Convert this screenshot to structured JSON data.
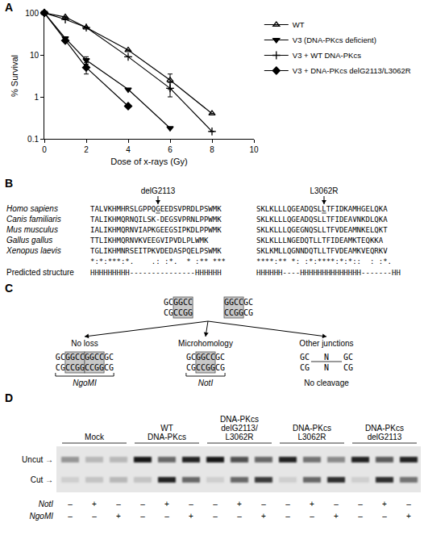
{
  "chart_data": {
    "panel": "A",
    "type": "line",
    "x_label": "Dose of x-rays (Gy)",
    "y_label": "% Survival",
    "x": [
      0,
      1,
      2,
      4,
      6,
      8
    ],
    "xlim": [
      0,
      10
    ],
    "xticks": [
      0,
      2,
      4,
      6,
      8,
      10
    ],
    "ylim": [
      0.1,
      100
    ],
    "yticks": [
      0.1,
      1,
      10,
      100
    ],
    "log": "y",
    "grid": false,
    "legend": "right",
    "series": [
      {
        "name": "WT",
        "color": "#000000",
        "marker": "triangle-up-open",
        "values": [
          100,
          80,
          45,
          13,
          2.5,
          0.4
        ],
        "error": [
          null,
          null,
          null,
          null,
          1,
          null
        ]
      },
      {
        "name": "V3 (DNA-PKcs deficient)",
        "color": "#000000",
        "marker": "triangle-down",
        "values": [
          100,
          25,
          7.5,
          1.5,
          0.18,
          null
        ],
        "error": [
          null,
          null,
          1.5,
          null,
          null,
          null
        ]
      },
      {
        "name": "V3 + WT DNA-PKcs",
        "color": "#000000",
        "marker": "cross-thin-open",
        "values": [
          100,
          70,
          45,
          9,
          1.6,
          0.15
        ],
        "error": [
          null,
          null,
          null,
          null,
          0.6,
          null
        ]
      },
      {
        "name": "V3 + DNA-PKcs delG2113/L3062R",
        "color": "#000000",
        "marker": "diamond",
        "values": [
          100,
          22,
          5,
          0.6,
          null,
          null
        ],
        "error": [
          null,
          null,
          1.5,
          null,
          null,
          null
        ]
      }
    ]
  },
  "alignment": {
    "panel": "B",
    "mutations": [
      "delG2113",
      "L3062R"
    ],
    "rows": [
      {
        "species": "Homo sapiens",
        "blocks": [
          [
            "TALVKHMHRSLGPPQ",
            "G",
            "EEDSVPRDLPSWMK"
          ],
          [
            "SKLKLLLQGEADQSL",
            "L",
            "TFIDKAMHGELQKA"
          ]
        ]
      },
      {
        "species": "Canis familiaris",
        "blocks": [
          [
            "TALIKHMQRNQILSK-DEGSVPRNLPPWMK"
          ],
          [
            "SKLKLLLQGEADQSLLTFIDEAVNKDLQKA"
          ]
        ]
      },
      {
        "species": "Mus musculus",
        "blocks": [
          [
            "IALIKHMQRNVIAPKGEEGSIPKDLPPWMK"
          ],
          [
            "SKLKLLLQGEGNQSLLTFVDEAMNKELQKT"
          ]
        ]
      },
      {
        "species": "Gallus gallus",
        "blocks": [
          [
            "TTLIKHMQRNVKVEEGVIPVDLPLWMK"
          ],
          [
            "SKLKLLLNGEDQTLLTFIDEAMKTEQKKA"
          ]
        ]
      },
      {
        "species": "Xenopus laevis",
        "blocks": [
          [
            "TGLIKHMNRSEITPKVDEDASPQELPSWMK"
          ],
          [
            "SKLKMLLQGNNDQTLLTFVDEAMKVEQRKV"
          ]
        ]
      }
    ],
    "consensus": [
      "*:*:***:*.    .: :*.  * :** ***",
      "****:** *: :*:****:*:*::  : :*."
    ],
    "structure_label": "Predicted structure",
    "structure": [
      "HHHHHHHHH---------------HHHHHH",
      "HHHHHH----HHHHHHHHHHHHHH-------HH"
    ]
  },
  "diagram": {
    "panel": "C",
    "ends": [
      [
        {
          "top": "GC",
          "bottom": "CG"
        },
        {
          "top": "GGCC",
          "bottom": "CCGG",
          "boxed": true
        }
      ],
      [
        {
          "top": "GGCC",
          "bottom": "CCGG",
          "boxed": true
        },
        {
          "top": "GC",
          "bottom": "CG"
        }
      ]
    ],
    "outcomes": [
      {
        "title": "No loss",
        "segments": [
          {
            "top": "GC",
            "bottom": "CG"
          },
          {
            "top": "GGCC",
            "bottom": "CCGG",
            "boxed": true
          },
          {
            "top": "GGCC",
            "bottom": "CCGG",
            "boxed": true
          },
          {
            "top": "GC",
            "bottom": "CG"
          }
        ],
        "enzyme": "NgoMI"
      },
      {
        "title": "Microhomology",
        "segments": [
          {
            "top": "GC",
            "bottom": "CG"
          },
          {
            "top": "GGCC",
            "bottom": "CCGG",
            "boxed": true
          },
          {
            "top": "GC",
            "bottom": "CG"
          }
        ],
        "enzyme": "NotI"
      },
      {
        "title": "Other junctions",
        "segments": [
          {
            "top": "GC",
            "bottom": "CG"
          },
          {
            "top": "N",
            "bottom": "N",
            "gap": true
          },
          {
            "top": "GC",
            "bottom": "CG"
          }
        ],
        "result": "No cleavage"
      }
    ]
  },
  "gel": {
    "panel": "D",
    "band_labels": [
      "Uncut →",
      "Cut →"
    ],
    "groups": [
      {
        "label": [
          "Mock"
        ],
        "lanes": [
          {
            "uncut": 0.35,
            "cut": 0.1
          },
          {
            "uncut": 0.2,
            "cut": 0.15
          },
          {
            "uncut": 0.2,
            "cut": 0.2
          }
        ]
      },
      {
        "label": [
          "WT",
          "DNA-PKcs"
        ],
        "lanes": [
          {
            "uncut": 0.9,
            "cut": 0.15
          },
          {
            "uncut": 0.55,
            "cut": 0.85
          },
          {
            "uncut": 0.85,
            "cut": 0.55
          }
        ]
      },
      {
        "label": [
          "DNA-PKcs",
          "delG2113/",
          "L3062R"
        ],
        "lanes": [
          {
            "uncut": 0.9,
            "cut": 0.1
          },
          {
            "uncut": 0.65,
            "cut": 0.55
          },
          {
            "uncut": 0.55,
            "cut": 0.75
          }
        ]
      },
      {
        "label": [
          "DNA-PKcs",
          "L3062R"
        ],
        "lanes": [
          {
            "uncut": 0.85,
            "cut": 0.1
          },
          {
            "uncut": 0.5,
            "cut": 0.55
          },
          {
            "uncut": 0.4,
            "cut": 0.8
          }
        ]
      },
      {
        "label": [
          "DNA-PKcs",
          "delG2113"
        ],
        "lanes": [
          {
            "uncut": 0.85,
            "cut": 0.1
          },
          {
            "uncut": 0.6,
            "cut": 0.8
          },
          {
            "uncut": 0.85,
            "cut": 0.5
          }
        ]
      }
    ],
    "digests": [
      {
        "enzyme": "NotI",
        "signs": [
          "–",
          "+",
          "–",
          "–",
          "+",
          "–",
          "–",
          "+",
          "–",
          "–",
          "+",
          "–",
          "–",
          "+",
          "–"
        ]
      },
      {
        "enzyme": "NgoMI",
        "signs": [
          "–",
          "–",
          "+",
          "–",
          "–",
          "+",
          "–",
          "–",
          "+",
          "–",
          "–",
          "+",
          "–",
          "–",
          "+"
        ]
      }
    ]
  }
}
